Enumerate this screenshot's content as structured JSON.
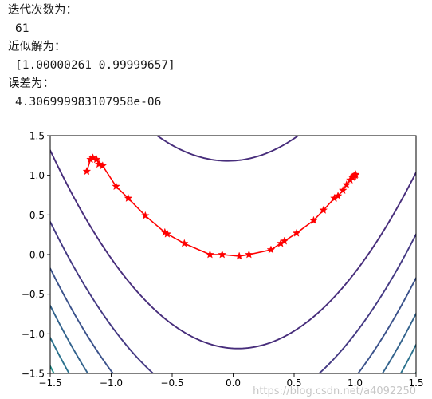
{
  "output": {
    "iterations_label": "迭代次数为：",
    "iterations_value": "61",
    "solution_label": "近似解为：",
    "solution_value": "[1.00000261 0.99999657]",
    "error_label": "误差为：",
    "error_value": "4.306999983107958e-06"
  },
  "watermark": "https://blog.csdn.net/a4092250",
  "chart_data": {
    "type": "contour+line",
    "title": "",
    "xlabel": "",
    "ylabel": "",
    "xlim": [
      -1.5,
      1.5
    ],
    "ylim": [
      -1.5,
      1.5
    ],
    "xticks": [
      -1.5,
      -1.0,
      -0.5,
      0.0,
      0.5,
      1.0,
      1.5
    ],
    "xtick_labels": [
      "−1.5",
      "−1.0",
      "−0.5",
      "0.0",
      "0.5",
      "1.0",
      "1.5"
    ],
    "yticks": [
      1.5,
      1.0,
      0.5,
      0.0,
      -0.5,
      -1.0,
      -1.5
    ],
    "ytick_labels": [
      "1.5",
      "1.0",
      "0.5",
      "0.0",
      "−0.5",
      "−1.0",
      "−1.5"
    ],
    "grid": false,
    "contours": {
      "function": "(1-x)^2 + 10*(y-x^2)^2",
      "levels": [
        15,
        40,
        65,
        90,
        115,
        140,
        165,
        190,
        215
      ],
      "colors": [
        "#472d7b",
        "#443983",
        "#3b528b",
        "#33638d",
        "#2c728e",
        "#21918c",
        "#28ae80",
        "#5ec962",
        "#b5de2b"
      ]
    },
    "path": {
      "color": "#ff0000",
      "marker": "star",
      "points": [
        [
          -1.2,
          1.05
        ],
        [
          -1.17,
          1.2
        ],
        [
          -1.15,
          1.22
        ],
        [
          -1.12,
          1.2
        ],
        [
          -1.1,
          1.14
        ],
        [
          -1.07,
          1.12
        ],
        [
          -0.96,
          0.86
        ],
        [
          -0.86,
          0.71
        ],
        [
          -0.72,
          0.49
        ],
        [
          -0.56,
          0.28
        ],
        [
          -0.54,
          0.26
        ],
        [
          -0.4,
          0.14
        ],
        [
          -0.19,
          0.0
        ],
        [
          -0.09,
          0.0
        ],
        [
          0.05,
          -0.02
        ],
        [
          0.13,
          0.0
        ],
        [
          0.31,
          0.06
        ],
        [
          0.39,
          0.14
        ],
        [
          0.42,
          0.17
        ],
        [
          0.52,
          0.27
        ],
        [
          0.66,
          0.43
        ],
        [
          0.74,
          0.56
        ],
        [
          0.83,
          0.71
        ],
        [
          0.86,
          0.74
        ],
        [
          0.9,
          0.81
        ],
        [
          0.93,
          0.88
        ],
        [
          0.96,
          0.94
        ],
        [
          0.98,
          0.97
        ],
        [
          0.99,
          0.99
        ],
        [
          1.0,
          1.0
        ],
        [
          1.005,
          1.01
        ],
        [
          1.0,
          1.0
        ]
      ]
    }
  }
}
